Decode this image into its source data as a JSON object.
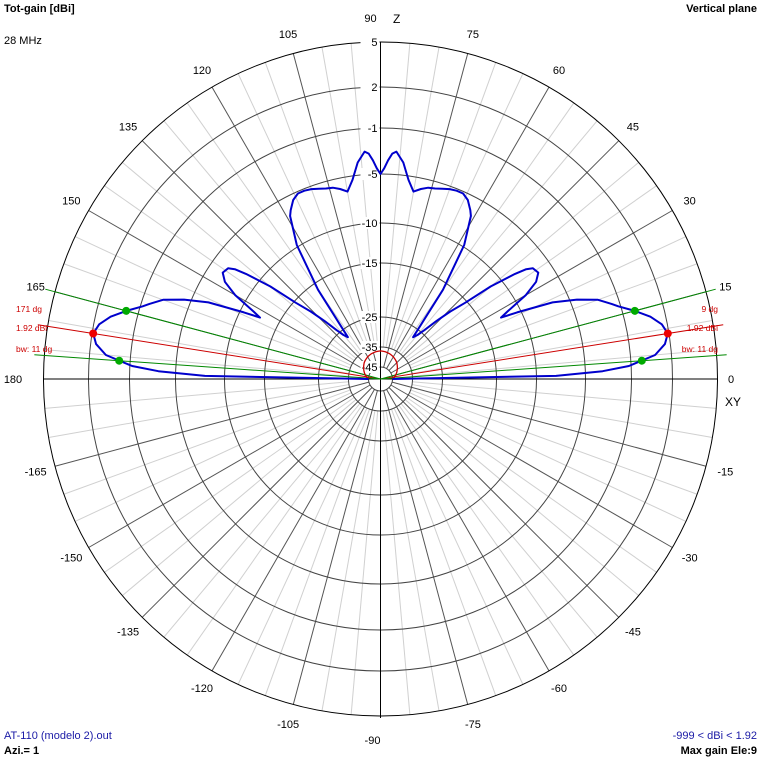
{
  "header": {
    "title": "Tot-gain [dBi]",
    "frequency": "28 MHz",
    "plane": "Vertical plane"
  },
  "footer": {
    "file": "AT-110 (modelo 2).out",
    "azimuth": "Azi.= 1",
    "range": "-999 < dBi < 1.92",
    "max_gain": "Max gain Ele:9"
  },
  "colors": {
    "pattern": "#0000cc",
    "beam_line": "#cc0000",
    "halfpower_line": "#008800",
    "grid": "#444444",
    "spokes": "#d0d0d0"
  },
  "chart_data": {
    "type": "polar",
    "title": "Tot-gain [dBi]",
    "plane": "vertical",
    "axis_labels": {
      "top": "Z",
      "right": "XY"
    },
    "radial_ticks": [
      5,
      2,
      -1,
      -5,
      -10,
      -15,
      -25,
      -35,
      -45
    ],
    "radial_tick_labels": [
      "5",
      "2",
      "-1",
      "-5",
      "-10",
      "-15",
      "-25",
      "-35",
      "-45"
    ],
    "angle_labels": [
      {
        "angle": 0,
        "text": "0"
      },
      {
        "angle": 15,
        "text": "15"
      },
      {
        "angle": 30,
        "text": "30"
      },
      {
        "angle": 45,
        "text": "45"
      },
      {
        "angle": 60,
        "text": "60"
      },
      {
        "angle": 75,
        "text": "75"
      },
      {
        "angle": 90,
        "text": "90"
      },
      {
        "angle": 105,
        "text": "105"
      },
      {
        "angle": 120,
        "text": "120"
      },
      {
        "angle": 135,
        "text": "135"
      },
      {
        "angle": 150,
        "text": "150"
      },
      {
        "angle": 165,
        "text": "165"
      },
      {
        "angle": 180,
        "text": "180"
      },
      {
        "angle": -15,
        "text": "-15"
      },
      {
        "angle": -30,
        "text": "-30"
      },
      {
        "angle": -45,
        "text": "-45"
      },
      {
        "angle": -60,
        "text": "-60"
      },
      {
        "angle": -75,
        "text": "-75"
      },
      {
        "angle": -90,
        "text": "-90"
      },
      {
        "angle": -105,
        "text": "-105"
      },
      {
        "angle": -120,
        "text": "-120"
      },
      {
        "angle": -135,
        "text": "-135"
      },
      {
        "angle": -150,
        "text": "-150"
      },
      {
        "angle": -165,
        "text": "-165"
      }
    ],
    "series": [
      {
        "elevation_deg": [
          0,
          1,
          2,
          3,
          5,
          7,
          9,
          11,
          13,
          15,
          17,
          18,
          20,
          22,
          24,
          26,
          27,
          28,
          30,
          32,
          34,
          36,
          37,
          38,
          40,
          42,
          44,
          46,
          48,
          50,
          52,
          55,
          58,
          61,
          62,
          64,
          66,
          68,
          70,
          72,
          74,
          76,
          78,
          80,
          82,
          84,
          86,
          87,
          88,
          89,
          90
        ],
        "gain_dbi": [
          -45,
          -8,
          -3.5,
          -1.2,
          0.8,
          1.6,
          1.92,
          1.6,
          0.9,
          -0.1,
          -1.2,
          -1.7,
          -2.7,
          -4.4,
          -6.7,
          -10.5,
          -12.6,
          -11.5,
          -8.8,
          -7.2,
          -6.5,
          -6.7,
          -7.3,
          -8.5,
          -11.5,
          -15.4,
          -18.5,
          -21.5,
          -24.3,
          -26.5,
          -28,
          -16.3,
          -9.8,
          -6.9,
          -6.4,
          -5.6,
          -5.2,
          -5.2,
          -5.3,
          -5.5,
          -5.7,
          -5.8,
          -6.1,
          -6.5,
          -5.4,
          -3.9,
          -3.0,
          -3.2,
          -3.8,
          -4.5,
          -5.0
        ]
      }
    ],
    "max_gain": {
      "elevation_deg": 9,
      "gain_dbi": 1.92
    },
    "beamwidth_deg": 11,
    "halfpower_elevations_deg": [
      4,
      15
    ],
    "annotations_right": [
      "9 dg",
      "1.92 dBi",
      "bw: 11 dg"
    ],
    "annotations_left": [
      "171 dg",
      "1.92 dBi",
      "bw: 11 dg"
    ],
    "inner_curve": {
      "elevation_deg": [
        0,
        3,
        6,
        10,
        15,
        20,
        25,
        30,
        35,
        40,
        45,
        50,
        55,
        60,
        65,
        70,
        75,
        80,
        85,
        88,
        90
      ],
      "gain_dbi": [
        -45,
        -44.7,
        -44.3,
        -43.8,
        -43.2,
        -42.5,
        -41.9,
        -41.3,
        -40.7,
        -40.1,
        -39.5,
        -39,
        -38.6,
        -38.2,
        -37.9,
        -37.6,
        -37.4,
        -37.2,
        -37.1,
        -37,
        -37
      ]
    }
  }
}
